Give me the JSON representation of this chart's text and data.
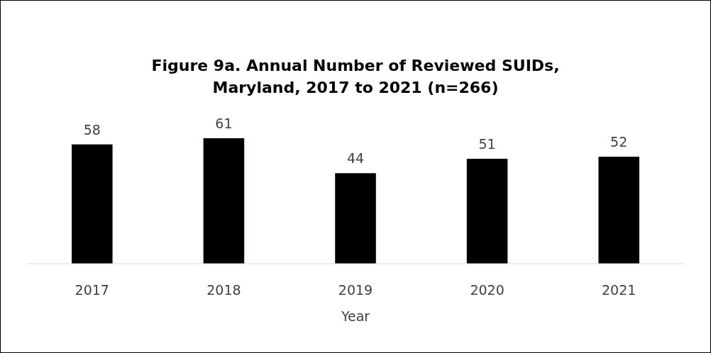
{
  "chart_data": {
    "type": "bar",
    "title": "Figure 9a. Annual Number of Reviewed SUIDs,\nMaryland, 2017 to 2021 (n=266)",
    "xlabel": "Year",
    "categories": [
      "2017",
      "2018",
      "2019",
      "2020",
      "2021"
    ],
    "values": [
      58,
      61,
      44,
      51,
      52
    ],
    "color": "#000000",
    "data_labels": true,
    "grid": false
  }
}
